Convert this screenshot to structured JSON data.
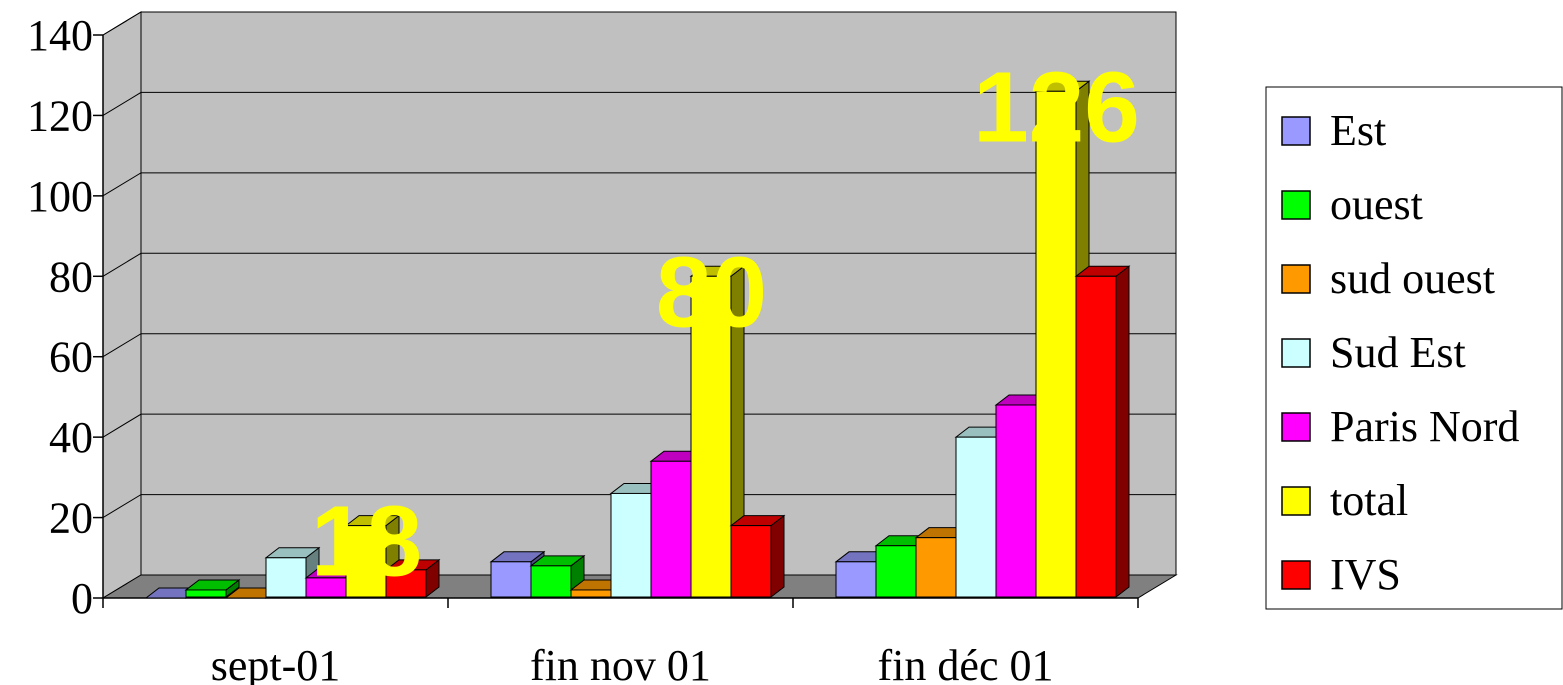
{
  "chart_data": {
    "type": "bar",
    "categories": [
      "sept-01",
      "fin nov 01",
      "fin déc 01"
    ],
    "series": [
      {
        "name": "Est",
        "values": [
          0,
          9,
          9
        ],
        "color": "#9999ff"
      },
      {
        "name": "ouest",
        "values": [
          2,
          8,
          13
        ],
        "color": "#00ff00"
      },
      {
        "name": "sud ouest",
        "values": [
          0,
          2,
          15
        ],
        "color": "#ff9900"
      },
      {
        "name": "Sud Est",
        "values": [
          10,
          26,
          40
        ],
        "color": "#ccffff"
      },
      {
        "name": "Paris Nord",
        "values": [
          5,
          34,
          48
        ],
        "color": "#ff00ff"
      },
      {
        "name": "total",
        "values": [
          18,
          80,
          126
        ],
        "color": "#ffff00"
      },
      {
        "name": "IVS",
        "values": [
          7,
          18,
          80
        ],
        "color": "#ff0000"
      }
    ],
    "y_ticks": [
      "0",
      "20",
      "40",
      "60",
      "80",
      "100",
      "120",
      "140"
    ],
    "ylim": [
      0,
      140
    ],
    "data_labels": [
      {
        "text": "18",
        "series": "total",
        "category": "sept-01"
      },
      {
        "text": "80",
        "series": "total",
        "category": "fin nov 01"
      },
      {
        "text": "126",
        "series": "total",
        "category": "fin déc 01"
      }
    ],
    "grid": true,
    "legend_position": "right",
    "wall_color": "#c0c0c0",
    "floor_color": "#808080",
    "data_label_color": "#ffff00"
  }
}
